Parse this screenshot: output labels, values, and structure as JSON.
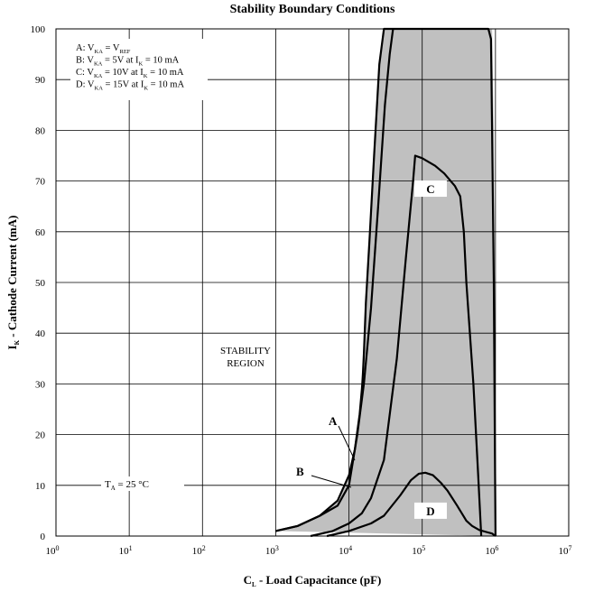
{
  "chart_data": {
    "type": "area",
    "title": "Stability Boundary Conditions",
    "xlabel": {
      "main": "C",
      "sub": "L",
      "rest": " - Load Capacitance (pF)"
    },
    "ylabel": {
      "main": "I",
      "sub": "K",
      "rest": " - Cathode Current (mA)"
    },
    "xscale": "log",
    "xlim": [
      1,
      10000000
    ],
    "ylim": [
      0,
      100
    ],
    "x_ticks": [
      {
        "base": "10",
        "exp": "0",
        "value": 1
      },
      {
        "base": "10",
        "exp": "1",
        "value": 10
      },
      {
        "base": "10",
        "exp": "2",
        "value": 100
      },
      {
        "base": "10",
        "exp": "3",
        "value": 1000
      },
      {
        "base": "10",
        "exp": "4",
        "value": 10000
      },
      {
        "base": "10",
        "exp": "5",
        "value": 100000
      },
      {
        "base": "10",
        "exp": "6",
        "value": 1000000
      },
      {
        "base": "10",
        "exp": "7",
        "value": 10000000
      }
    ],
    "y_ticks": [
      0,
      10,
      20,
      30,
      40,
      50,
      60,
      70,
      80,
      90,
      100
    ],
    "grid": true,
    "fill_color": "#c0c0c0",
    "legend": [
      {
        "id": "A",
        "segs": [
          [
            "A:  V",
            ""
          ],
          [
            "KA",
            "sub"
          ],
          [
            " = V",
            ""
          ],
          [
            "REF",
            "sub"
          ]
        ]
      },
      {
        "id": "B",
        "segs": [
          [
            "B:  V",
            ""
          ],
          [
            "KA",
            "sub"
          ],
          [
            " = 5V at I",
            ""
          ],
          [
            "K",
            "sub"
          ],
          [
            " = 10 mA",
            ""
          ]
        ]
      },
      {
        "id": "C",
        "segs": [
          [
            "C:  V",
            ""
          ],
          [
            "KA",
            "sub"
          ],
          [
            " = 10V at I",
            ""
          ],
          [
            "K",
            "sub"
          ],
          [
            " = 10 mA",
            ""
          ]
        ]
      },
      {
        "id": "D",
        "segs": [
          [
            "D:  V",
            ""
          ],
          [
            "KA",
            "sub"
          ],
          [
            " = 15V at I",
            ""
          ],
          [
            "K",
            "sub"
          ],
          [
            " = 10 mA",
            ""
          ]
        ]
      }
    ],
    "annotations": {
      "stability_line1": "STABILITY",
      "stability_line2": "REGION",
      "ta": {
        "main": "T",
        "sub": "A",
        "rest": " = 25 °C"
      }
    },
    "curve_labels": {
      "A": "A",
      "B": "B",
      "C": "C",
      "D": "D"
    },
    "series": [
      {
        "name": "A",
        "x": [
          1000,
          2000,
          4000,
          7000,
          10000,
          12000,
          14000,
          15000,
          15200,
          15500,
          16000,
          17000,
          19000,
          22000,
          26000,
          30000,
          31000,
          36000,
          45000,
          60000,
          80000,
          100000,
          200000,
          400000,
          600000,
          800000,
          870000,
          900000,
          950000,
          980000,
          1000000
        ],
        "y": [
          1,
          2,
          4,
          7,
          12,
          17,
          24,
          29,
          30,
          32,
          36,
          46,
          58,
          75,
          93,
          100,
          100,
          100,
          100,
          100,
          100,
          100,
          100,
          100,
          100,
          100,
          98,
          80,
          50,
          20,
          0
        ]
      },
      {
        "name": "B",
        "x": [
          1000,
          2000,
          4000,
          7000,
          10000,
          13000,
          16000,
          20000,
          25000,
          31000,
          36000,
          40000
        ],
        "y": [
          1,
          2,
          4,
          6,
          10,
          20,
          30,
          45,
          65,
          85,
          95,
          100
        ]
      },
      {
        "name": "C",
        "x": [
          3000,
          6000,
          10000,
          15000,
          20000,
          30000,
          45000,
          60000,
          75000,
          80000,
          100000,
          150000,
          200000,
          280000,
          330000,
          370000,
          400000,
          500000,
          580000,
          640000
        ],
        "y": [
          0,
          1,
          2.5,
          4.5,
          7.5,
          15,
          35,
          55,
          70,
          75,
          74.5,
          73,
          71.5,
          69,
          67,
          60,
          50,
          30,
          12,
          0
        ]
      },
      {
        "name": "D",
        "x": [
          5000,
          10000,
          20000,
          30000,
          50000,
          70000,
          90000,
          110000,
          140000,
          180000,
          220000,
          300000,
          400000,
          480000,
          600000,
          750000,
          900000,
          1000000
        ],
        "y": [
          0,
          1,
          2.5,
          4,
          8,
          11,
          12.3,
          12.5,
          12,
          10.5,
          9,
          6,
          3,
          2,
          1.2,
          0.8,
          0.5,
          0
        ]
      }
    ],
    "shaded_region": {
      "x": [
        1000,
        2000,
        4000,
        7000,
        10000,
        12000,
        14000,
        15000,
        15200,
        15500,
        16000,
        17000,
        19000,
        22000,
        26000,
        30000,
        900000,
        950000,
        980000,
        1000000,
        1000000
      ],
      "y": [
        1,
        2,
        4,
        7,
        12,
        17,
        24,
        29,
        30,
        32,
        36,
        46,
        58,
        75,
        93,
        100,
        100,
        80,
        50,
        20,
        0
      ]
    },
    "label_positions": [
      {
        "id": "C",
        "x": 130000,
        "y": 68.5,
        "boxed": true
      },
      {
        "id": "D",
        "x": 130000,
        "y": 5,
        "boxed": true
      }
    ]
  }
}
